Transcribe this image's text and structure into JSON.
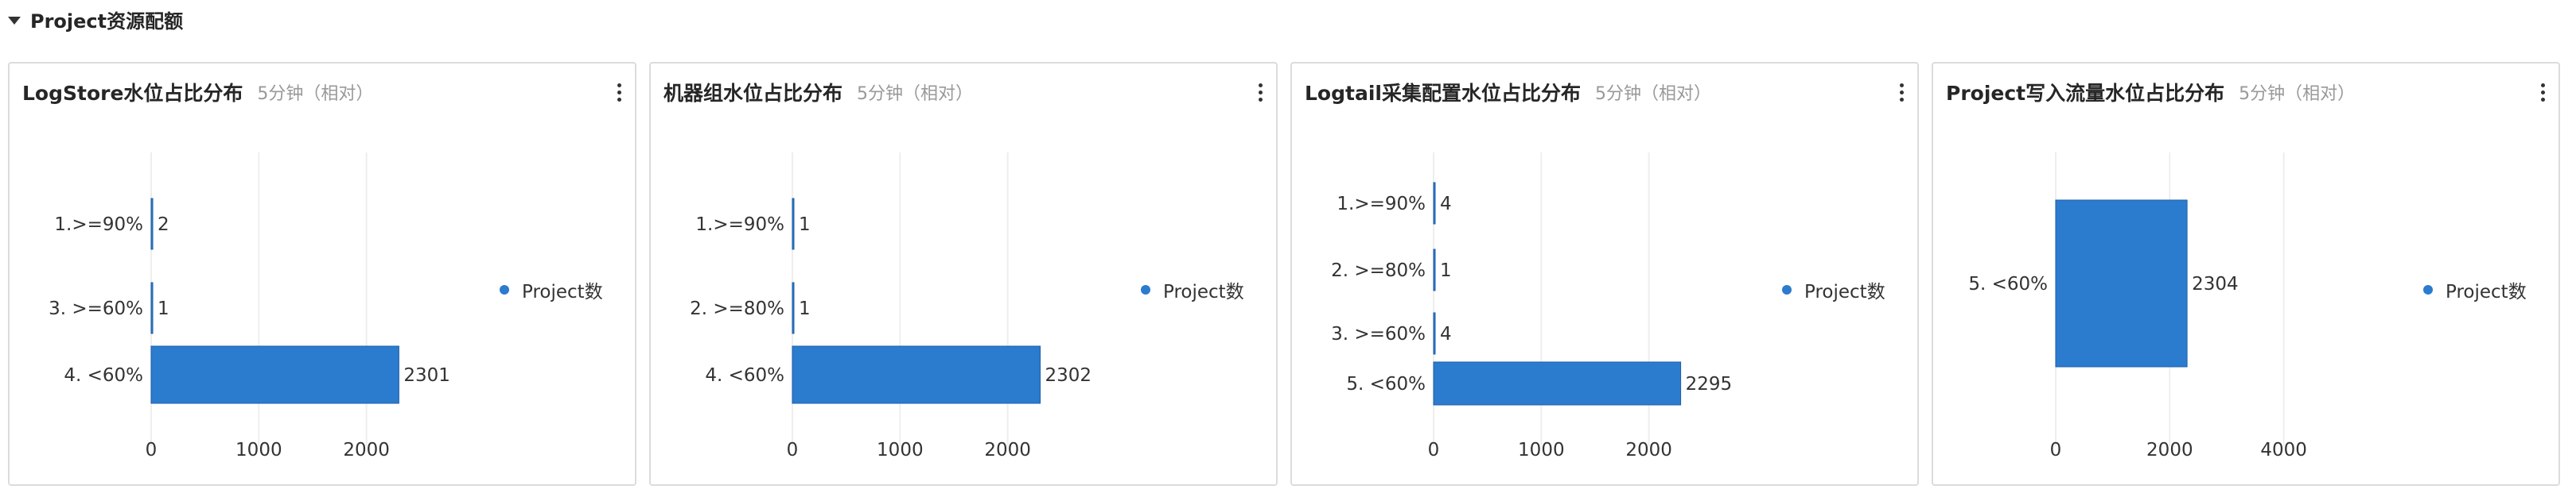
{
  "section": {
    "title": "Project资源配额"
  },
  "colors": {
    "bar": "#2b7bce",
    "bar_stroke": "#1f5fa8",
    "grid": "#eeeeee"
  },
  "panels": [
    {
      "title": "LogStore水位占比分布",
      "range": "5分钟（相对）",
      "legend": "Project数"
    },
    {
      "title": "机器组水位占比分布",
      "range": "5分钟（相对）",
      "legend": "Project数"
    },
    {
      "title": "Logtail采集配置水位占比分布",
      "range": "5分钟（相对）",
      "legend": "Project数"
    },
    {
      "title": "Project写入流量水位占比分布",
      "range": "5分钟（相对）",
      "legend": "Project数"
    }
  ],
  "chart_data": [
    {
      "type": "bar",
      "orientation": "horizontal",
      "categories": [
        "1.>=90%",
        "3. >=60%",
        "4. <60%"
      ],
      "series": [
        {
          "name": "Project数",
          "values": [
            2,
            1,
            2301
          ]
        }
      ],
      "xticks": [
        "0",
        "1000",
        "2000"
      ],
      "xlim": [
        0,
        3000
      ],
      "legend_position": "right",
      "grid": true
    },
    {
      "type": "bar",
      "orientation": "horizontal",
      "categories": [
        "1.>=90%",
        "2. >=80%",
        "4. <60%"
      ],
      "series": [
        {
          "name": "Project数",
          "values": [
            1,
            1,
            2302
          ]
        }
      ],
      "xticks": [
        "0",
        "1000",
        "2000"
      ],
      "xlim": [
        0,
        3000
      ],
      "legend_position": "right",
      "grid": true
    },
    {
      "type": "bar",
      "orientation": "horizontal",
      "categories": [
        "1.>=90%",
        "2. >=80%",
        "3. >=60%",
        "5. <60%"
      ],
      "series": [
        {
          "name": "Project数",
          "values": [
            4,
            1,
            4,
            2295
          ]
        }
      ],
      "xticks": [
        "0",
        "1000",
        "2000"
      ],
      "xlim": [
        0,
        3000
      ],
      "legend_position": "right",
      "grid": true
    },
    {
      "type": "bar",
      "orientation": "horizontal",
      "categories": [
        "5. <60%"
      ],
      "series": [
        {
          "name": "Project数",
          "values": [
            2304
          ]
        }
      ],
      "xticks": [
        "0",
        "2000",
        "4000"
      ],
      "xlim": [
        0,
        6000
      ],
      "legend_position": "right",
      "grid": true
    }
  ]
}
